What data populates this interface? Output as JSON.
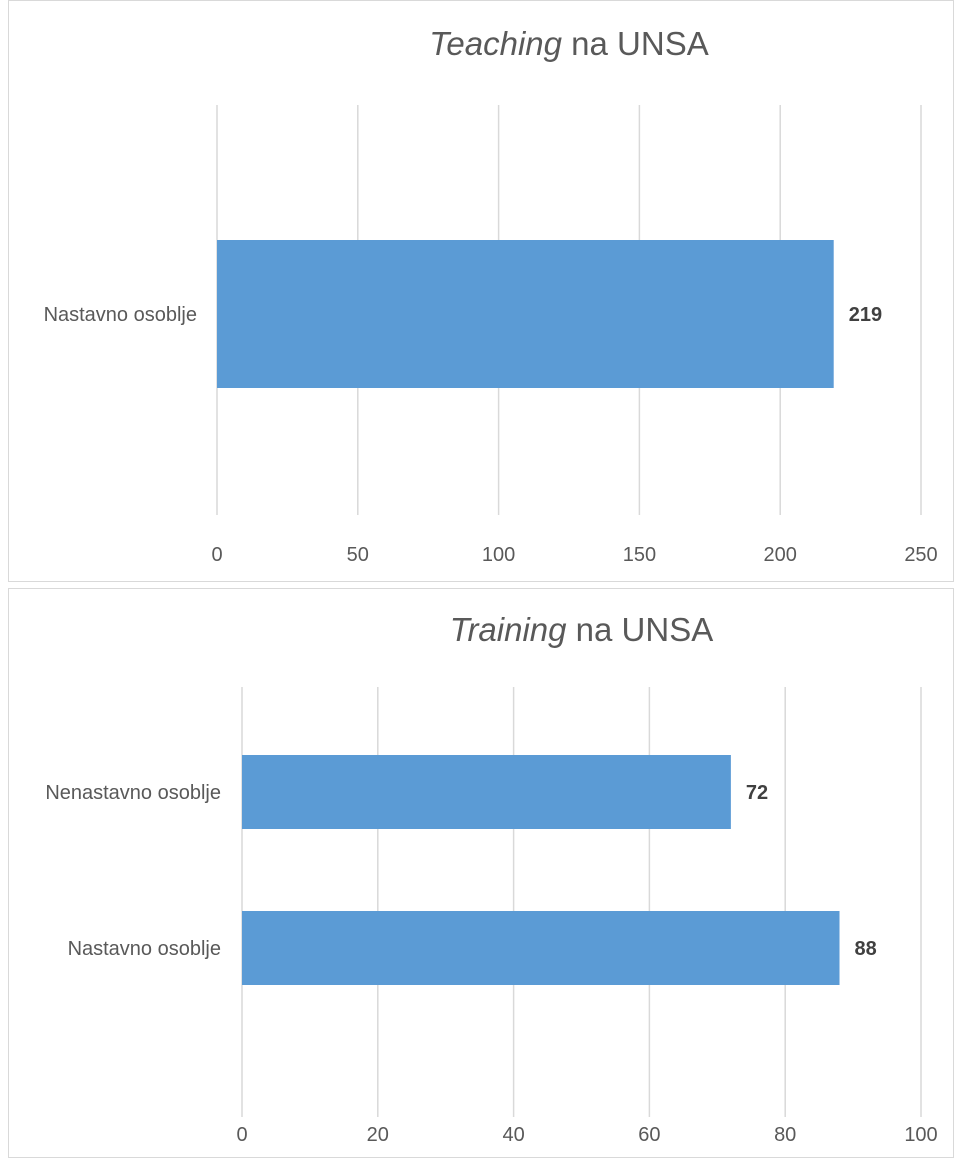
{
  "chart_data": [
    {
      "type": "bar",
      "orientation": "horizontal",
      "title_italic": "Teaching",
      "title_rest": " na UNSA",
      "categories": [
        "Nastavno osoblje"
      ],
      "values": [
        219
      ],
      "data_labels": [
        "219"
      ],
      "xlim": [
        0,
        250
      ],
      "xticks": [
        0,
        50,
        100,
        150,
        200,
        250
      ],
      "tick_labels": [
        "0",
        "50",
        "100",
        "150",
        "200",
        "250"
      ],
      "grid": "vertical",
      "bar_color": "#5b9bd5",
      "legend": "none"
    },
    {
      "type": "bar",
      "orientation": "horizontal",
      "title_italic": "Training",
      "title_rest": " na UNSA",
      "categories": [
        "Nenastavno osoblje",
        "Nastavno osoblje"
      ],
      "values": [
        72,
        88
      ],
      "data_labels": [
        "72",
        "88"
      ],
      "xlim": [
        0,
        100
      ],
      "xticks": [
        0,
        20,
        40,
        60,
        80,
        100
      ],
      "tick_labels": [
        "0",
        "20",
        "40",
        "60",
        "80",
        "100"
      ],
      "grid": "vertical",
      "bar_color": "#5b9bd5",
      "legend": "none"
    }
  ]
}
